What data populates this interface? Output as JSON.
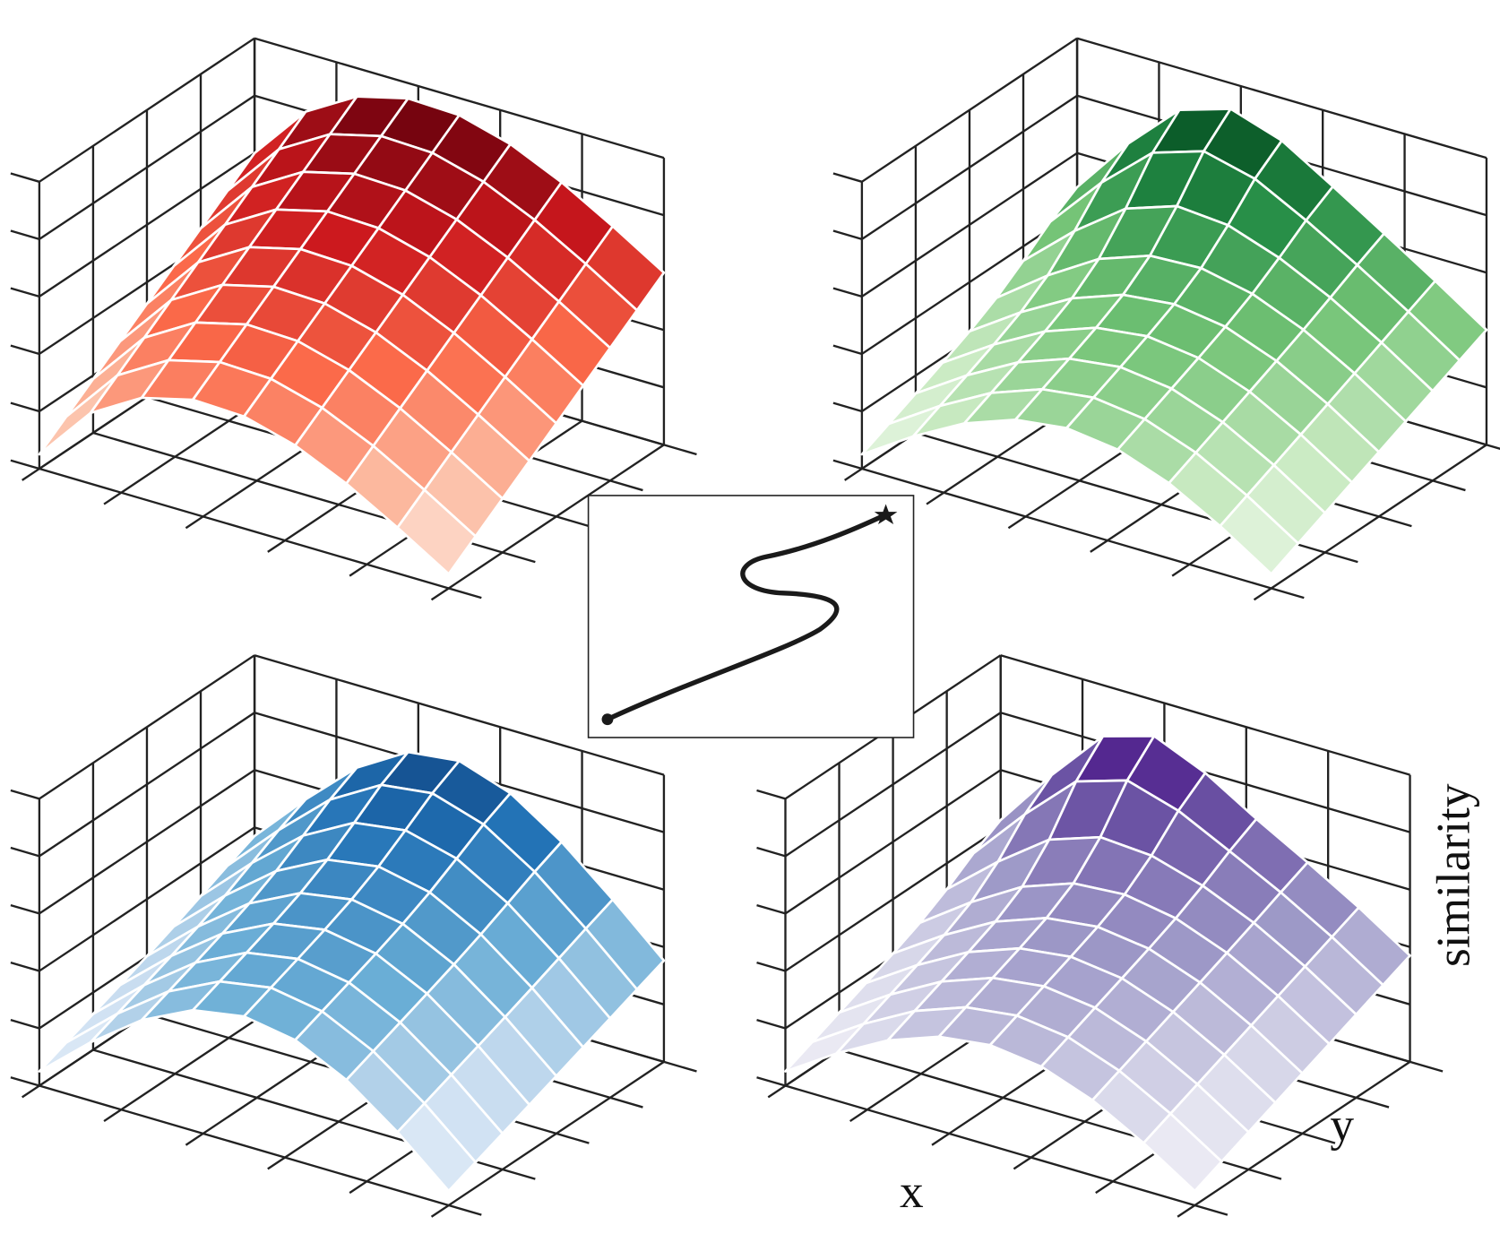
{
  "labels": {
    "x": "x",
    "y": "y",
    "z": "similarity"
  }
}
